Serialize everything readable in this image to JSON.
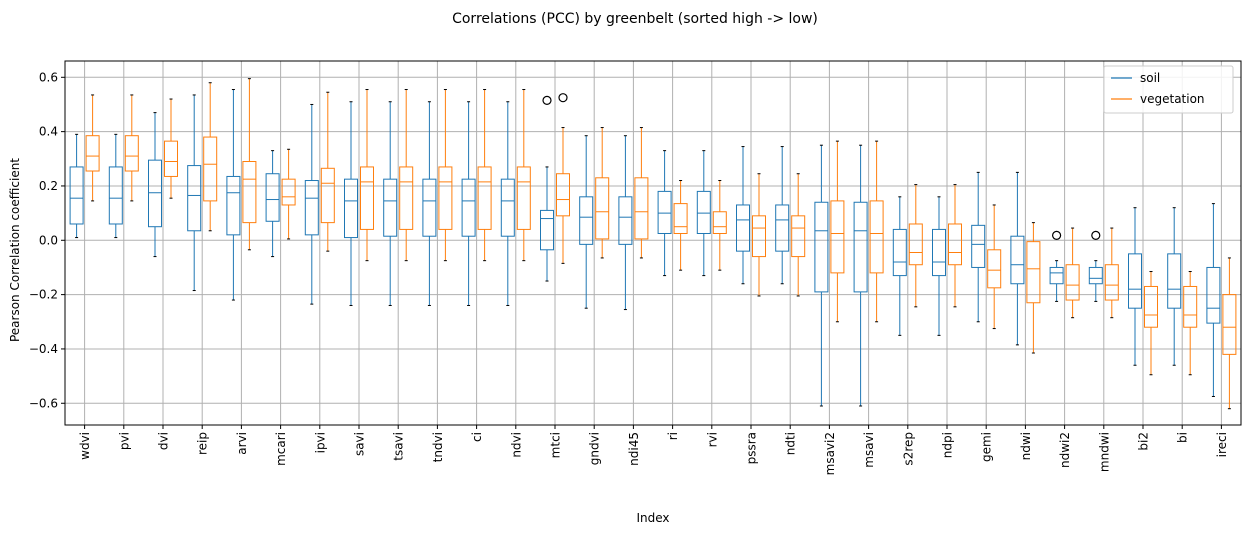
{
  "chart_data": {
    "type": "box",
    "title": "Correlations (PCC) by greenbelt (sorted high -> low)",
    "xlabel": "Index",
    "ylabel": "Pearson Correlation coefficient",
    "ylim": [
      -0.68,
      0.66
    ],
    "yticks": [
      -0.6,
      -0.4,
      -0.2,
      0.0,
      0.2,
      0.4,
      0.6
    ],
    "ytick_labels": [
      "−0.6",
      "−0.4",
      "−0.2",
      "0.0",
      "0.2",
      "0.4",
      "0.6"
    ],
    "grid": true,
    "legend_position": "top-right",
    "categories": [
      "wdvi",
      "pvi",
      "dvi",
      "reip",
      "arvi",
      "mcari",
      "ipvi",
      "savi",
      "tsavi",
      "tndvi",
      "ci",
      "ndvi",
      "mtci",
      "gndvi",
      "ndi45",
      "ri",
      "rvi",
      "pssra",
      "ndti",
      "msavi2",
      "msavi",
      "s2rep",
      "ndpi",
      "gemi",
      "ndwi",
      "ndwi2",
      "mndwi",
      "bi2",
      "bi",
      "ireci"
    ],
    "series": [
      {
        "name": "soil",
        "color": "#1f77b4",
        "boxes": [
          {
            "wlo": 0.01,
            "q1": 0.06,
            "med": 0.155,
            "q3": 0.27,
            "whi": 0.39,
            "fliers": []
          },
          {
            "wlo": 0.01,
            "q1": 0.06,
            "med": 0.155,
            "q3": 0.27,
            "whi": 0.39,
            "fliers": []
          },
          {
            "wlo": -0.06,
            "q1": 0.05,
            "med": 0.175,
            "q3": 0.295,
            "whi": 0.47,
            "fliers": []
          },
          {
            "wlo": -0.185,
            "q1": 0.035,
            "med": 0.165,
            "q3": 0.275,
            "whi": 0.535,
            "fliers": []
          },
          {
            "wlo": -0.22,
            "q1": 0.02,
            "med": 0.175,
            "q3": 0.235,
            "whi": 0.555,
            "fliers": []
          },
          {
            "wlo": -0.06,
            "q1": 0.07,
            "med": 0.15,
            "q3": 0.245,
            "whi": 0.33,
            "fliers": []
          },
          {
            "wlo": -0.235,
            "q1": 0.02,
            "med": 0.155,
            "q3": 0.22,
            "whi": 0.5,
            "fliers": []
          },
          {
            "wlo": -0.24,
            "q1": 0.01,
            "med": 0.145,
            "q3": 0.225,
            "whi": 0.51,
            "fliers": []
          },
          {
            "wlo": -0.24,
            "q1": 0.015,
            "med": 0.145,
            "q3": 0.225,
            "whi": 0.51,
            "fliers": []
          },
          {
            "wlo": -0.24,
            "q1": 0.015,
            "med": 0.145,
            "q3": 0.225,
            "whi": 0.51,
            "fliers": []
          },
          {
            "wlo": -0.24,
            "q1": 0.015,
            "med": 0.145,
            "q3": 0.225,
            "whi": 0.51,
            "fliers": []
          },
          {
            "wlo": -0.24,
            "q1": 0.015,
            "med": 0.145,
            "q3": 0.225,
            "whi": 0.51,
            "fliers": []
          },
          {
            "wlo": -0.15,
            "q1": -0.035,
            "med": 0.08,
            "q3": 0.11,
            "whi": 0.27,
            "fliers": [
              0.515
            ]
          },
          {
            "wlo": -0.25,
            "q1": -0.015,
            "med": 0.085,
            "q3": 0.16,
            "whi": 0.385,
            "fliers": []
          },
          {
            "wlo": -0.255,
            "q1": -0.015,
            "med": 0.085,
            "q3": 0.16,
            "whi": 0.385,
            "fliers": []
          },
          {
            "wlo": -0.13,
            "q1": 0.025,
            "med": 0.1,
            "q3": 0.18,
            "whi": 0.33,
            "fliers": []
          },
          {
            "wlo": -0.13,
            "q1": 0.025,
            "med": 0.1,
            "q3": 0.18,
            "whi": 0.33,
            "fliers": []
          },
          {
            "wlo": -0.16,
            "q1": -0.04,
            "med": 0.075,
            "q3": 0.13,
            "whi": 0.345,
            "fliers": []
          },
          {
            "wlo": -0.16,
            "q1": -0.04,
            "med": 0.075,
            "q3": 0.13,
            "whi": 0.345,
            "fliers": []
          },
          {
            "wlo": -0.61,
            "q1": -0.19,
            "med": 0.035,
            "q3": 0.14,
            "whi": 0.35,
            "fliers": []
          },
          {
            "wlo": -0.61,
            "q1": -0.19,
            "med": 0.035,
            "q3": 0.14,
            "whi": 0.35,
            "fliers": []
          },
          {
            "wlo": -0.35,
            "q1": -0.13,
            "med": -0.08,
            "q3": 0.04,
            "whi": 0.16,
            "fliers": []
          },
          {
            "wlo": -0.35,
            "q1": -0.13,
            "med": -0.08,
            "q3": 0.04,
            "whi": 0.16,
            "fliers": []
          },
          {
            "wlo": -0.3,
            "q1": -0.1,
            "med": -0.015,
            "q3": 0.055,
            "whi": 0.25,
            "fliers": []
          },
          {
            "wlo": -0.385,
            "q1": -0.16,
            "med": -0.09,
            "q3": 0.015,
            "whi": 0.25,
            "fliers": []
          },
          {
            "wlo": -0.225,
            "q1": -0.16,
            "med": -0.12,
            "q3": -0.1,
            "whi": -0.075,
            "fliers": [
              0.018
            ]
          },
          {
            "wlo": -0.225,
            "q1": -0.16,
            "med": -0.14,
            "q3": -0.1,
            "whi": -0.075,
            "fliers": [
              0.018
            ]
          },
          {
            "wlo": -0.46,
            "q1": -0.25,
            "med": -0.18,
            "q3": -0.05,
            "whi": 0.12,
            "fliers": []
          },
          {
            "wlo": -0.46,
            "q1": -0.25,
            "med": -0.18,
            "q3": -0.05,
            "whi": 0.12,
            "fliers": []
          },
          {
            "wlo": -0.575,
            "q1": -0.305,
            "med": -0.25,
            "q3": -0.1,
            "whi": 0.135,
            "fliers": []
          }
        ]
      },
      {
        "name": "vegetation",
        "color": "#ff7f0e",
        "boxes": [
          {
            "wlo": 0.145,
            "q1": 0.255,
            "med": 0.31,
            "q3": 0.385,
            "whi": 0.535,
            "fliers": []
          },
          {
            "wlo": 0.145,
            "q1": 0.255,
            "med": 0.31,
            "q3": 0.385,
            "whi": 0.535,
            "fliers": []
          },
          {
            "wlo": 0.155,
            "q1": 0.235,
            "med": 0.29,
            "q3": 0.365,
            "whi": 0.52,
            "fliers": []
          },
          {
            "wlo": 0.035,
            "q1": 0.145,
            "med": 0.28,
            "q3": 0.38,
            "whi": 0.58,
            "fliers": []
          },
          {
            "wlo": -0.035,
            "q1": 0.065,
            "med": 0.225,
            "q3": 0.29,
            "whi": 0.595,
            "fliers": []
          },
          {
            "wlo": 0.005,
            "q1": 0.13,
            "med": 0.16,
            "q3": 0.225,
            "whi": 0.335,
            "fliers": []
          },
          {
            "wlo": -0.04,
            "q1": 0.065,
            "med": 0.21,
            "q3": 0.265,
            "whi": 0.545,
            "fliers": []
          },
          {
            "wlo": -0.075,
            "q1": 0.04,
            "med": 0.215,
            "q3": 0.27,
            "whi": 0.555,
            "fliers": []
          },
          {
            "wlo": -0.075,
            "q1": 0.04,
            "med": 0.215,
            "q3": 0.27,
            "whi": 0.555,
            "fliers": []
          },
          {
            "wlo": -0.075,
            "q1": 0.04,
            "med": 0.215,
            "q3": 0.27,
            "whi": 0.555,
            "fliers": []
          },
          {
            "wlo": -0.075,
            "q1": 0.04,
            "med": 0.215,
            "q3": 0.27,
            "whi": 0.555,
            "fliers": []
          },
          {
            "wlo": -0.075,
            "q1": 0.04,
            "med": 0.215,
            "q3": 0.27,
            "whi": 0.555,
            "fliers": []
          },
          {
            "wlo": -0.085,
            "q1": 0.09,
            "med": 0.15,
            "q3": 0.245,
            "whi": 0.415,
            "fliers": [
              0.525
            ]
          },
          {
            "wlo": -0.065,
            "q1": 0.005,
            "med": 0.105,
            "q3": 0.23,
            "whi": 0.415,
            "fliers": []
          },
          {
            "wlo": -0.065,
            "q1": 0.005,
            "med": 0.105,
            "q3": 0.23,
            "whi": 0.415,
            "fliers": []
          },
          {
            "wlo": -0.11,
            "q1": 0.025,
            "med": 0.05,
            "q3": 0.135,
            "whi": 0.22,
            "fliers": []
          },
          {
            "wlo": -0.11,
            "q1": 0.025,
            "med": 0.05,
            "q3": 0.105,
            "whi": 0.22,
            "fliers": []
          },
          {
            "wlo": -0.205,
            "q1": -0.06,
            "med": 0.045,
            "q3": 0.09,
            "whi": 0.245,
            "fliers": []
          },
          {
            "wlo": -0.205,
            "q1": -0.06,
            "med": 0.045,
            "q3": 0.09,
            "whi": 0.245,
            "fliers": []
          },
          {
            "wlo": -0.3,
            "q1": -0.12,
            "med": 0.025,
            "q3": 0.145,
            "whi": 0.365,
            "fliers": []
          },
          {
            "wlo": -0.3,
            "q1": -0.12,
            "med": 0.025,
            "q3": 0.145,
            "whi": 0.365,
            "fliers": []
          },
          {
            "wlo": -0.245,
            "q1": -0.09,
            "med": -0.045,
            "q3": 0.06,
            "whi": 0.205,
            "fliers": []
          },
          {
            "wlo": -0.245,
            "q1": -0.09,
            "med": -0.045,
            "q3": 0.06,
            "whi": 0.205,
            "fliers": []
          },
          {
            "wlo": -0.325,
            "q1": -0.175,
            "med": -0.11,
            "q3": -0.035,
            "whi": 0.13,
            "fliers": []
          },
          {
            "wlo": -0.415,
            "q1": -0.23,
            "med": -0.105,
            "q3": -0.005,
            "whi": 0.065,
            "fliers": []
          },
          {
            "wlo": -0.285,
            "q1": -0.22,
            "med": -0.165,
            "q3": -0.09,
            "whi": 0.045,
            "fliers": []
          },
          {
            "wlo": -0.285,
            "q1": -0.22,
            "med": -0.165,
            "q3": -0.09,
            "whi": 0.045,
            "fliers": []
          },
          {
            "wlo": -0.495,
            "q1": -0.32,
            "med": -0.275,
            "q3": -0.17,
            "whi": -0.115,
            "fliers": []
          },
          {
            "wlo": -0.495,
            "q1": -0.32,
            "med": -0.275,
            "q3": -0.17,
            "whi": -0.115,
            "fliers": []
          },
          {
            "wlo": -0.62,
            "q1": -0.42,
            "med": -0.32,
            "q3": -0.2,
            "whi": -0.065,
            "fliers": []
          }
        ]
      }
    ]
  }
}
